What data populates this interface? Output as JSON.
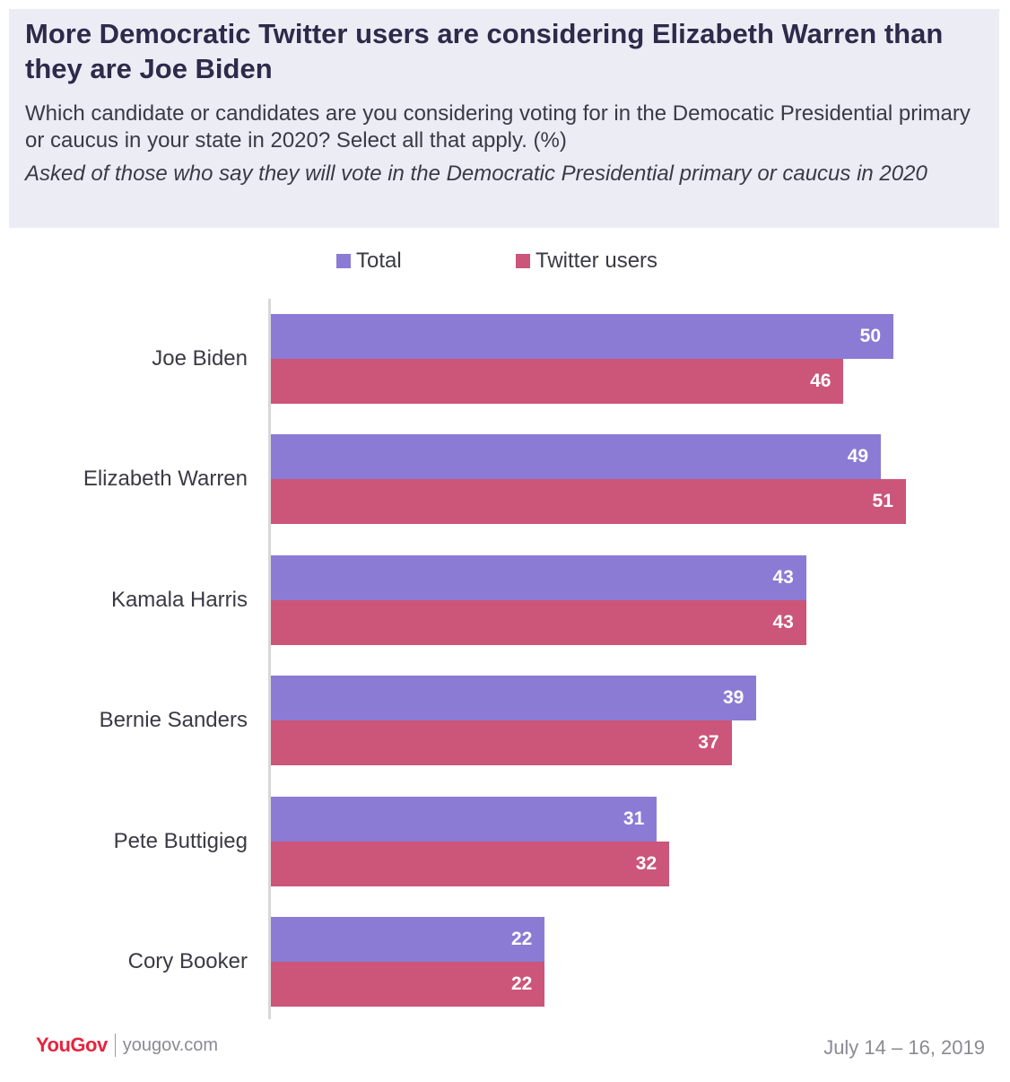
{
  "header": {
    "title": "More Democratic Twitter users are considering Elizabeth Warren than they are Joe Biden",
    "subtitle": "Which candidate or candidates are you considering voting for in the Democatic Presidential primary or caucus in your state in 2020? Select all that apply. (%)",
    "note": "Asked of those who say they will vote in the Democratic Presidential primary or caucus in 2020"
  },
  "colors": {
    "total": "#8b7bd4",
    "twitter": "#cc557a",
    "header_bg": "#ececf5"
  },
  "chart_data": {
    "type": "bar",
    "orientation": "horizontal",
    "categories": [
      "Joe Biden",
      "Elizabeth Warren",
      "Kamala Harris",
      "Bernie Sanders",
      "Pete Buttigieg",
      "Cory Booker"
    ],
    "series": [
      {
        "name": "Total",
        "values": [
          50,
          49,
          43,
          39,
          31,
          22
        ]
      },
      {
        "name": "Twitter users",
        "values": [
          46,
          51,
          43,
          37,
          32,
          22
        ]
      }
    ],
    "xlim": [
      0,
      56
    ],
    "legend_position": "top",
    "data_labels": true,
    "grid": false
  },
  "footer": {
    "brand": "YouGov",
    "url": "yougov.com",
    "date": "July 14 – 16, 2019"
  }
}
